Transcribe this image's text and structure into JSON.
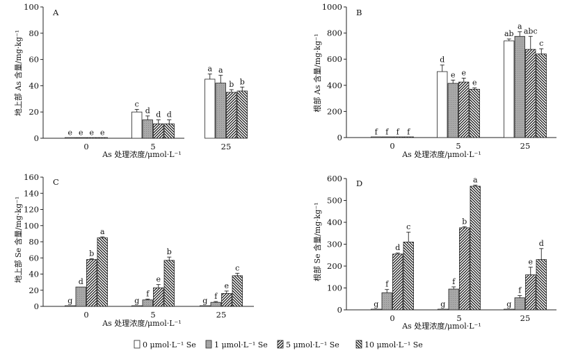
{
  "legend": [
    {
      "label": "0 μmol·L⁻¹ Se",
      "pattern": "white"
    },
    {
      "label": "1 μmol·L⁻¹ Se",
      "pattern": "gray"
    },
    {
      "label": "5 μmol·L⁻¹ Se",
      "pattern": "hatch-right"
    },
    {
      "label": "10 μmol·L⁻¹ Se",
      "pattern": "hatch-left"
    }
  ],
  "colors": {
    "bar_stroke": "#222222",
    "gray_fill": "#a8a8a8",
    "hatch": "#111111"
  },
  "chart_data": [
    {
      "panel": "A",
      "type": "bar",
      "ylabel": "地上部 As 含量/mg·kg⁻¹",
      "xlabel": "As 处理浓度/μmol·L⁻¹",
      "categories": [
        "0",
        "5",
        "25"
      ],
      "ylim": [
        0,
        100
      ],
      "yticks": [
        0,
        20,
        40,
        60,
        80,
        100
      ],
      "series": [
        {
          "values": [
            0.3,
            20,
            45
          ],
          "errors": [
            0,
            2,
            4
          ],
          "letters": [
            "e",
            "c",
            "a"
          ]
        },
        {
          "values": [
            0.3,
            14,
            42
          ],
          "errors": [
            0,
            3,
            6
          ],
          "letters": [
            "e",
            "d",
            "a"
          ]
        },
        {
          "values": [
            0.3,
            11,
            35
          ],
          "errors": [
            0,
            3,
            2
          ],
          "letters": [
            "e",
            "d",
            "b"
          ]
        },
        {
          "values": [
            0.3,
            11,
            36
          ],
          "errors": [
            0,
            3,
            3
          ],
          "letters": [
            "e",
            "d",
            "b"
          ]
        }
      ]
    },
    {
      "panel": "B",
      "type": "bar",
      "ylabel": "根部 As 含量/mg·kg⁻¹",
      "xlabel": "As 处理浓度/μmol·L⁻¹",
      "categories": [
        "0",
        "5",
        "25"
      ],
      "ylim": [
        0,
        1000
      ],
      "yticks": [
        0,
        200,
        400,
        600,
        800,
        1000
      ],
      "series": [
        {
          "values": [
            2,
            505,
            740
          ],
          "errors": [
            0,
            50,
            15
          ],
          "letters": [
            "f",
            "d",
            "ab"
          ]
        },
        {
          "values": [
            2,
            415,
            775
          ],
          "errors": [
            0,
            25,
            35
          ],
          "letters": [
            "f",
            "e",
            "a"
          ]
        },
        {
          "values": [
            2,
            425,
            675
          ],
          "errors": [
            0,
            30,
            100
          ],
          "letters": [
            "f",
            "e",
            "abc"
          ]
        },
        {
          "values": [
            2,
            370,
            640
          ],
          "errors": [
            0,
            10,
            40
          ],
          "letters": [
            "f",
            "e",
            "c"
          ]
        }
      ]
    },
    {
      "panel": "C",
      "type": "bar",
      "ylabel": "地上部 Se 含量/mg·kg⁻¹",
      "xlabel": "As 处理浓度/μmol·L⁻¹",
      "categories": [
        "0",
        "5",
        "25"
      ],
      "ylim": [
        0,
        160
      ],
      "yticks": [
        0,
        20,
        40,
        60,
        80,
        100,
        120,
        140,
        160
      ],
      "series": [
        {
          "values": [
            0.3,
            0.3,
            0.3
          ],
          "errors": [
            0,
            0,
            0
          ],
          "letters": [
            "g",
            "g",
            "g"
          ]
        },
        {
          "values": [
            24,
            8,
            5
          ],
          "errors": [
            0,
            1,
            1
          ],
          "letters": [
            "d",
            "f",
            "f"
          ]
        },
        {
          "values": [
            58,
            23,
            16
          ],
          "errors": [
            1,
            4,
            3
          ],
          "letters": [
            "b",
            "e",
            "e"
          ]
        },
        {
          "values": [
            85,
            57,
            38
          ],
          "errors": [
            1,
            4,
            3
          ],
          "letters": [
            "a",
            "b",
            "c"
          ]
        }
      ]
    },
    {
      "panel": "D",
      "type": "bar",
      "ylabel": "根部 Se 含量/mg·kg⁻¹",
      "xlabel": "As 处理浓度/μmol·L⁻¹",
      "categories": [
        "0",
        "5",
        "25"
      ],
      "ylim": [
        0,
        600
      ],
      "yticks": [
        0,
        100,
        200,
        300,
        400,
        500,
        600
      ],
      "series": [
        {
          "values": [
            1,
            1,
            1
          ],
          "errors": [
            0,
            0,
            0
          ],
          "letters": [
            "g",
            "g",
            "g"
          ]
        },
        {
          "values": [
            78,
            95,
            55
          ],
          "errors": [
            15,
            10,
            10
          ],
          "letters": [
            "f",
            "f",
            "f"
          ]
        },
        {
          "values": [
            255,
            375,
            160
          ],
          "errors": [
            5,
            5,
            35
          ],
          "letters": [
            "d",
            "b",
            "e"
          ]
        },
        {
          "values": [
            310,
            565,
            230
          ],
          "errors": [
            45,
            5,
            50
          ],
          "letters": [
            "c",
            "a",
            "d"
          ]
        }
      ]
    }
  ]
}
